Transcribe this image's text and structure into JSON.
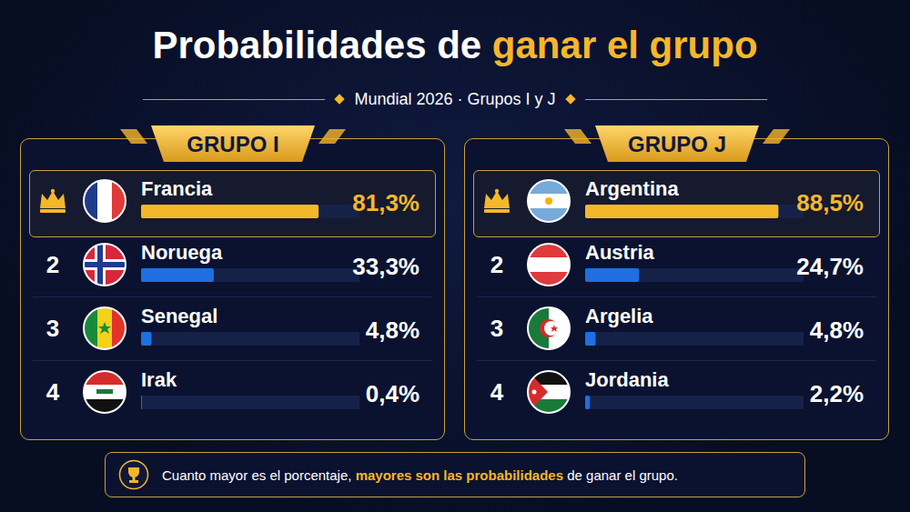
{
  "title": "Probabilidades de ganar el grupo",
  "title_highlight": "ganar el grupo",
  "subtitle": "Mundial 2026 · Grupos I y J",
  "note": "Cuanto mayor es el porcentaje, mayores son las probabilidades de ganar el grupo.",
  "note_highlight": "mayores son las probabilidades",
  "chart_data": [
    {
      "type": "bar",
      "title": "GRUPO I",
      "orientation": "horizontal",
      "categories": [
        "Francia",
        "Noruega",
        "Senegal",
        "Irak"
      ],
      "ranks": [
        null,
        2,
        3,
        4
      ],
      "values": [
        81.3,
        33.3,
        4.8,
        0.4
      ],
      "value_labels": [
        "81,3%",
        "33,3%",
        "4,8%",
        "0,4%"
      ],
      "colors": [
        "#f5b72a",
        "#1f6fe0",
        "#1f6fe0",
        "#1f6fe0"
      ],
      "xlim": [
        0,
        100
      ],
      "data_labels": true,
      "tick_labels": false,
      "grid": false
    },
    {
      "type": "bar",
      "title": "GRUPO J",
      "orientation": "horizontal",
      "categories": [
        "Argentina",
        "Austria",
        "Argelia",
        "Jordania"
      ],
      "ranks": [
        null,
        2,
        3,
        4
      ],
      "values": [
        88.5,
        24.7,
        4.8,
        2.2
      ],
      "value_labels": [
        "88,5%",
        "24,7%",
        "4,8%",
        "2,2%"
      ],
      "colors": [
        "#f5b72a",
        "#1f6fe0",
        "#1f6fe0",
        "#1f6fe0"
      ],
      "xlim": [
        0,
        100
      ],
      "data_labels": true,
      "tick_labels": false,
      "grid": false
    }
  ]
}
